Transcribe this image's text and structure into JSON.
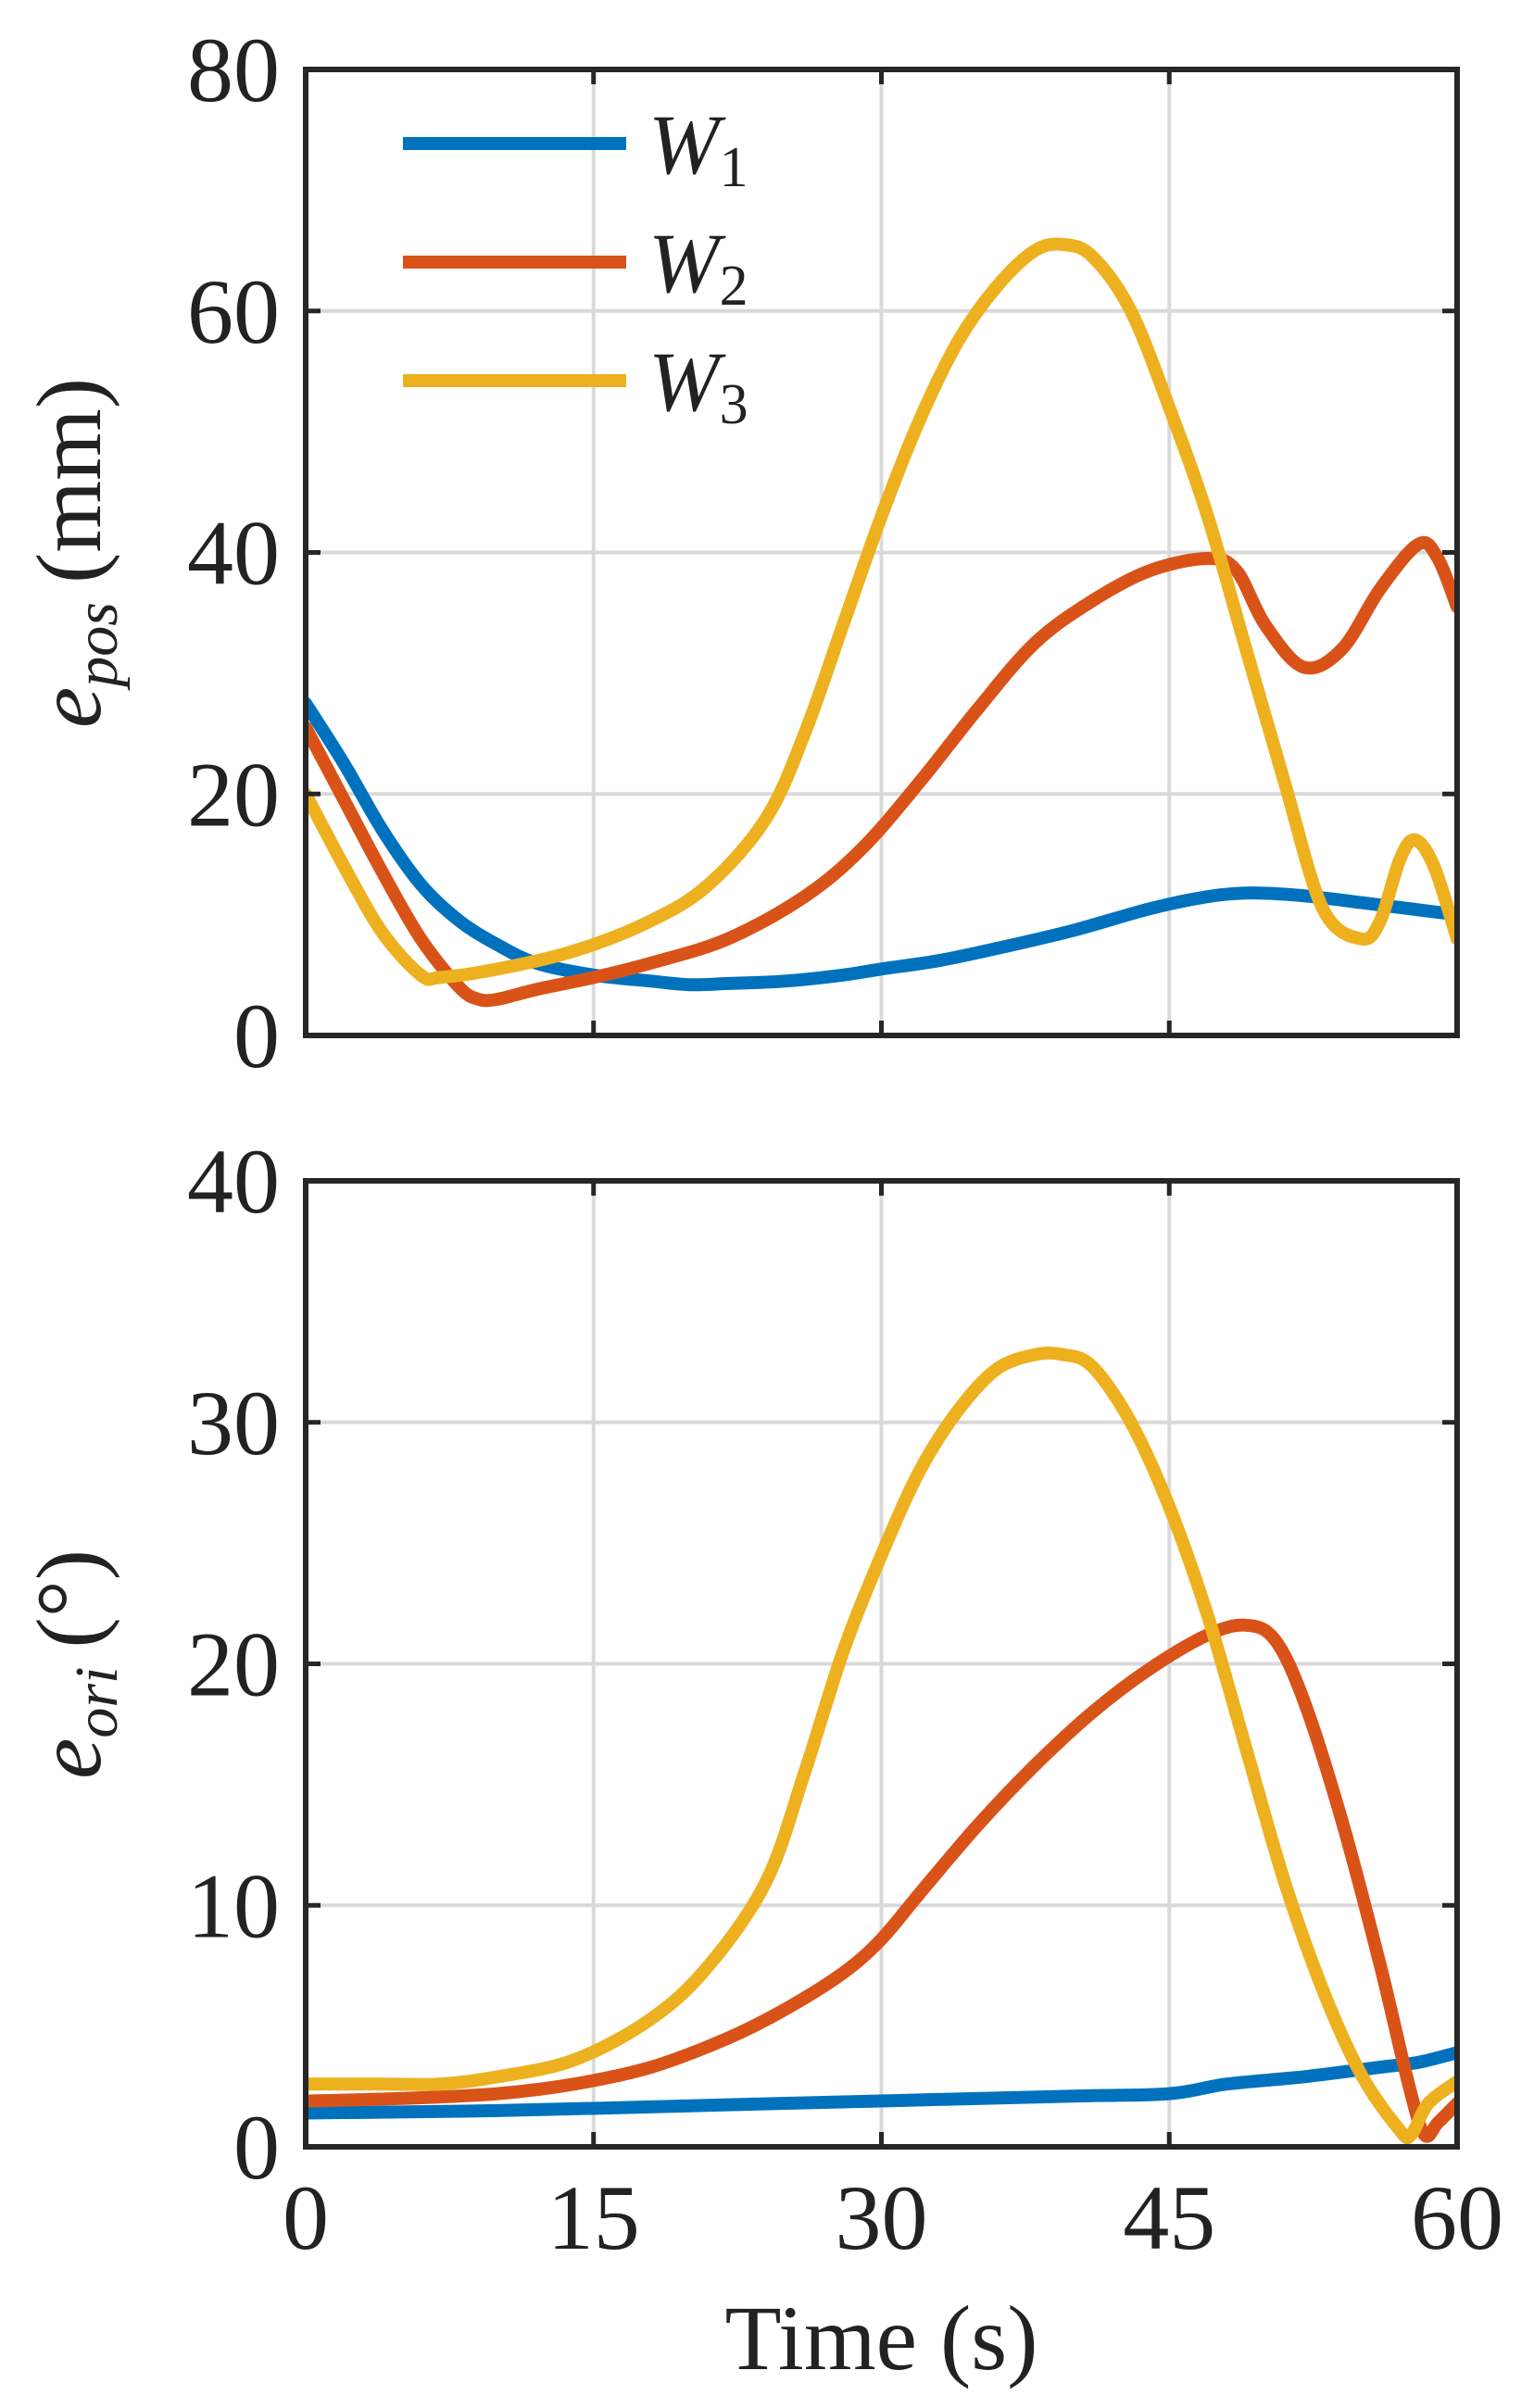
{
  "chart_data": [
    {
      "type": "line",
      "xlabel": "",
      "ylabel": {
        "main": "e",
        "sub": "pos",
        "unit": "(mm)"
      },
      "xlim": [
        0,
        60
      ],
      "ylim": [
        0,
        80
      ],
      "xticks": [
        0,
        15,
        30,
        45,
        60
      ],
      "yticks": [
        0,
        20,
        40,
        60,
        80
      ],
      "xtick_labels_visible": false,
      "grid": true,
      "legend": {
        "placement": "top-left"
      },
      "series": [
        {
          "name": "W1",
          "color": "#0072BD",
          "x": [
            0,
            2,
            4,
            6,
            8,
            10,
            12,
            15,
            18,
            20,
            22,
            25,
            28,
            30,
            33,
            36,
            40,
            44,
            47,
            49,
            51,
            53,
            55,
            57,
            60
          ],
          "y": [
            27.5,
            22.5,
            17.0,
            12.5,
            9.5,
            7.5,
            6.0,
            5.0,
            4.5,
            4.2,
            4.3,
            4.5,
            5.0,
            5.5,
            6.2,
            7.2,
            8.7,
            10.5,
            11.5,
            11.8,
            11.7,
            11.4,
            11.0,
            10.6,
            10.0
          ]
        },
        {
          "name": "W2",
          "color": "#D95319",
          "x": [
            0,
            2,
            4,
            6,
            8,
            9,
            10,
            12,
            15,
            18,
            22,
            26,
            29,
            32,
            35,
            38,
            41,
            44,
            47,
            48.5,
            50,
            52,
            54,
            56,
            58,
            59,
            60
          ],
          "y": [
            25.5,
            19.5,
            13.5,
            8.0,
            4.0,
            3.0,
            3.0,
            3.8,
            4.8,
            6.0,
            8.0,
            11.5,
            15.5,
            21.0,
            27.0,
            32.5,
            36.0,
            38.5,
            39.5,
            38.5,
            34.0,
            30.5,
            32.0,
            37.0,
            40.7,
            39.5,
            35.5
          ]
        },
        {
          "name": "W3",
          "color": "#EDB120",
          "x": [
            0,
            2,
            4,
            6,
            7,
            10,
            14,
            18,
            21,
            24,
            26,
            28,
            30,
            32,
            34,
            36,
            38,
            39.5,
            41,
            43,
            45,
            47,
            49,
            51,
            53,
            55,
            56,
            57,
            57.8,
            58.8,
            60
          ],
          "y": [
            20.0,
            14.0,
            8.5,
            5.0,
            4.8,
            5.5,
            7.0,
            9.5,
            12.5,
            18.0,
            25.0,
            34.0,
            43.0,
            51.0,
            57.5,
            62.0,
            65.0,
            65.5,
            64.5,
            60.0,
            52.0,
            43.0,
            32.0,
            21.0,
            10.5,
            8.0,
            9.5,
            14.5,
            16.2,
            14.0,
            8.0
          ]
        }
      ]
    },
    {
      "type": "line",
      "xlabel": "Time (s)",
      "ylabel": {
        "main": "e",
        "sub": "ori",
        "unit": "(°)"
      },
      "xlim": [
        0,
        60
      ],
      "ylim": [
        0,
        40
      ],
      "xticks": [
        0,
        15,
        30,
        45,
        60
      ],
      "yticks": [
        0,
        10,
        20,
        30,
        40
      ],
      "grid": true,
      "series": [
        {
          "name": "W1",
          "color": "#0072BD",
          "x": [
            0,
            10,
            20,
            30,
            40,
            45,
            48,
            52,
            56,
            58,
            60
          ],
          "y": [
            1.4,
            1.5,
            1.7,
            1.9,
            2.1,
            2.2,
            2.6,
            2.9,
            3.3,
            3.5,
            3.9
          ]
        },
        {
          "name": "W2",
          "color": "#D95319",
          "x": [
            0,
            5,
            10,
            14,
            18,
            22,
            25,
            28,
            30,
            32,
            35,
            38,
            41,
            44,
            47,
            49,
            50.5,
            52,
            54,
            56,
            57.5,
            58.3,
            59,
            60
          ],
          "y": [
            1.9,
            2.0,
            2.2,
            2.6,
            3.3,
            4.5,
            5.7,
            7.2,
            8.6,
            10.5,
            13.3,
            15.8,
            18.0,
            19.8,
            21.2,
            21.6,
            21.0,
            18.5,
            13.5,
            7.5,
            2.5,
            0.5,
            1.0,
            1.8
          ]
        },
        {
          "name": "W3",
          "color": "#EDB120",
          "x": [
            0,
            4,
            7,
            10,
            14,
            18,
            21,
            24,
            26,
            28,
            30,
            32,
            34,
            36,
            38,
            39.5,
            41,
            43,
            45,
            47,
            49,
            51,
            53,
            55,
            57,
            57.6,
            58.5,
            60
          ],
          "y": [
            2.6,
            2.6,
            2.6,
            2.9,
            3.6,
            5.3,
            7.5,
            11.0,
            15.5,
            20.5,
            24.5,
            28.0,
            30.5,
            32.2,
            32.8,
            32.8,
            32.3,
            30.0,
            26.5,
            22.0,
            16.5,
            11.0,
            6.5,
            3.0,
            0.7,
            0.5,
            1.8,
            2.7
          ]
        }
      ]
    }
  ]
}
